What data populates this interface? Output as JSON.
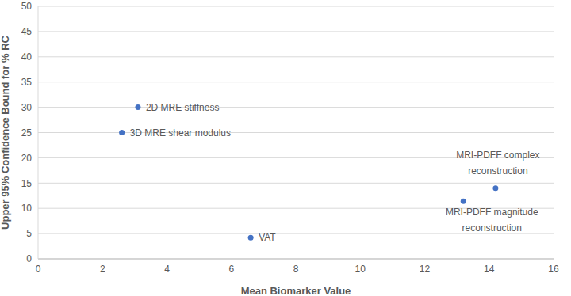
{
  "chart_data": {
    "type": "scatter",
    "x_label": "Mean Biomarker Value",
    "y_label": "Upper 95% Confidence Bound for % RC",
    "x": [
      3.1,
      2.6,
      6.6,
      13.2,
      14.2
    ],
    "values": [
      30,
      25,
      4.2,
      11.4,
      14
    ],
    "labels": [
      "2D MRE stiffness",
      "3D MRE shear modulus",
      "VAT",
      "MRI-PDFF magnitude\nreconstruction",
      "MRI-PDFF complex\nreconstruction"
    ],
    "color": "#4472c4",
    "xlim": [
      0,
      16
    ],
    "xticks": [
      0,
      2,
      4,
      6,
      8,
      10,
      12,
      14,
      16
    ],
    "ylim": [
      0,
      50
    ],
    "yticks": [
      0,
      5,
      10,
      15,
      20,
      25,
      30,
      35,
      40,
      45,
      50
    ],
    "grid": true
  }
}
